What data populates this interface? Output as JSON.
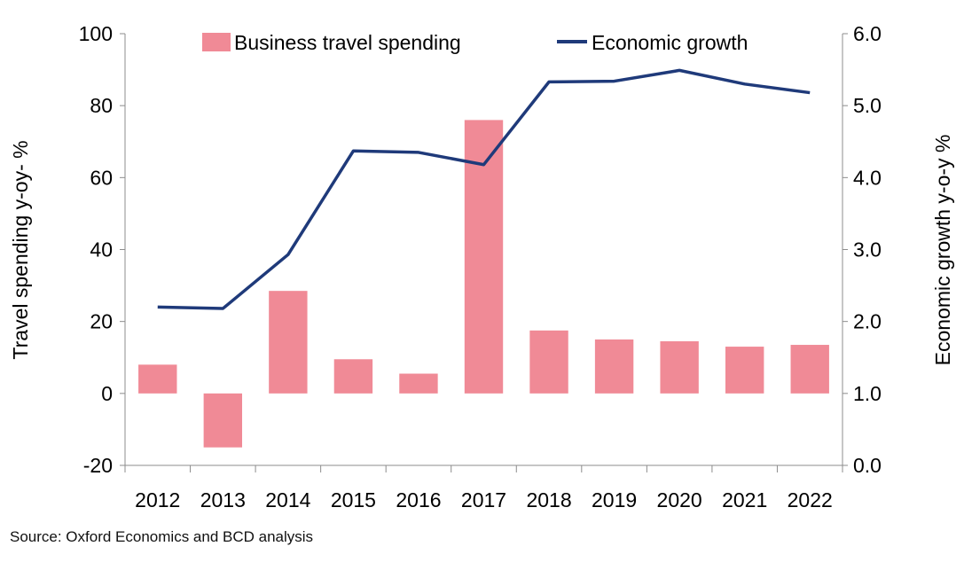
{
  "chart_data": {
    "type": "bar+line",
    "categories": [
      "2012",
      "2013",
      "2014",
      "2015",
      "2016",
      "2017",
      "2018",
      "2019",
      "2020",
      "2021",
      "2022"
    ],
    "series": [
      {
        "name": "Business travel spending",
        "type": "bar",
        "axis": "left",
        "color": "#f08a96",
        "values": [
          8,
          -15,
          28.5,
          9.5,
          5.5,
          76,
          17.5,
          15,
          14.5,
          13,
          13.5
        ]
      },
      {
        "name": "Economic growth",
        "type": "line",
        "axis": "right",
        "color": "#1f3a7a",
        "values": [
          2.2,
          2.18,
          2.93,
          4.37,
          4.35,
          4.18,
          5.33,
          5.34,
          5.49,
          5.3,
          5.18
        ]
      }
    ],
    "ylabel_left": "Travel spending y-oy- %",
    "ylabel_right": "Economic growth y-o-y %",
    "ylim_left": [
      -20,
      100
    ],
    "ylim_right": [
      0.0,
      6.0
    ],
    "yticks_left": [
      "100",
      "80",
      "60",
      "40",
      "20",
      "0",
      "-20"
    ],
    "yticks_right": [
      "6.0",
      "5.0",
      "4.0",
      "3.0",
      "2.0",
      "1.0",
      "0.0"
    ],
    "legend_position": "top",
    "grid": false
  },
  "source_text": "Source: Oxford Economics and BCD analysis"
}
